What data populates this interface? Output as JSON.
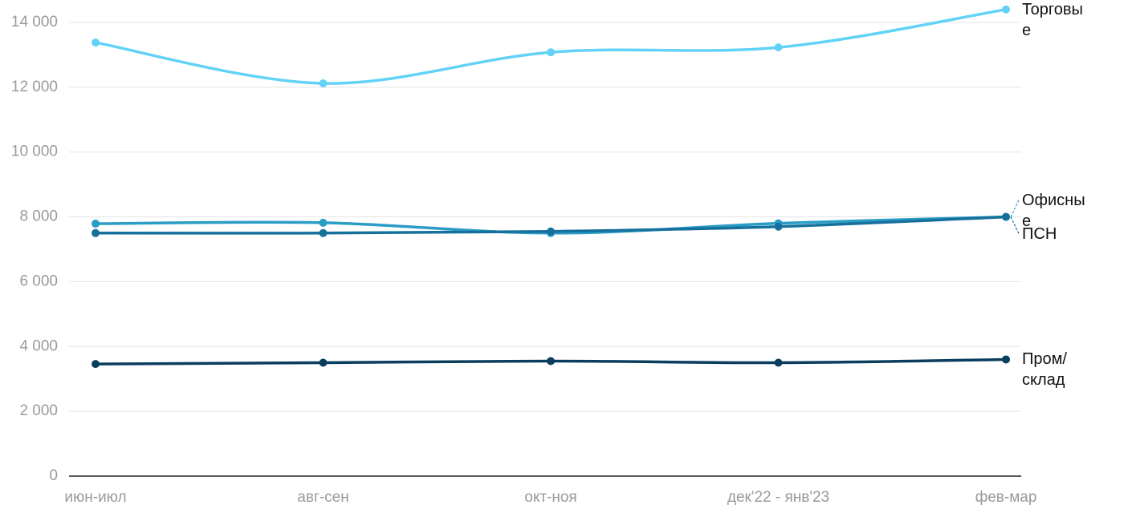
{
  "chart_data": {
    "type": "line",
    "categories": [
      "июн-июл",
      "авг-сен",
      "окт-ноя",
      "дек'22 - янв'23",
      "фев-мар"
    ],
    "series": [
      {
        "name": "Торговые",
        "color": "#62d2f7",
        "values": [
          13380,
          12120,
          13080,
          13230,
          14400
        ]
      },
      {
        "name": "Офисные",
        "color": "#2a9cc6",
        "values": [
          7790,
          7820,
          7500,
          7800,
          8000
        ]
      },
      {
        "name": "ПСН",
        "color": "#16709c",
        "values": [
          7500,
          7500,
          7550,
          7700,
          8000
        ]
      },
      {
        "name": "Пром/склад",
        "color": "#0a3d5e",
        "values": [
          3460,
          3500,
          3550,
          3500,
          3600
        ]
      }
    ],
    "ylim": [
      0,
      14000
    ],
    "yticks": [
      0,
      {
        "value": 2000,
        "label": "2 000"
      },
      {
        "value": 4000,
        "label": "4 000"
      },
      {
        "value": 6000,
        "label": "6 000"
      },
      {
        "value": 8000,
        "label": "8 000"
      },
      {
        "value": 10000,
        "label": "10 000"
      },
      {
        "value": 12000,
        "label": "12 000"
      },
      {
        "value": 14000,
        "label": "14 000"
      }
    ],
    "grid": true
  }
}
